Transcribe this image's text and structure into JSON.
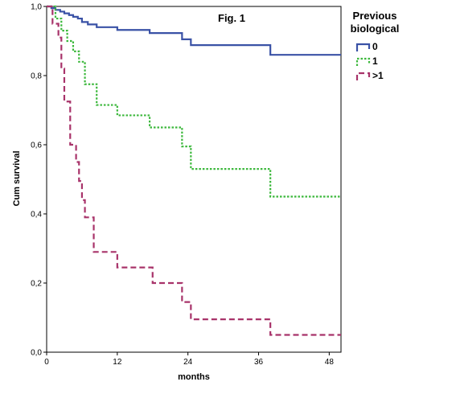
{
  "chart_data": {
    "type": "line",
    "step": true,
    "title": "Fig. 1",
    "xlabel": "months",
    "ylabel": "Cum survival",
    "xlim": [
      0,
      50
    ],
    "ylim": [
      0,
      1.0
    ],
    "xticks": [
      0,
      12,
      24,
      36,
      48
    ],
    "xtick_labels": [
      "0",
      "12",
      "24",
      "36",
      "48"
    ],
    "yticks": [
      0,
      0.2,
      0.4,
      0.6,
      0.8,
      1.0
    ],
    "ytick_labels": [
      "0,0",
      "0,2",
      "0,4",
      "0,6",
      "0,8",
      "1,0"
    ],
    "grid": false,
    "legend": {
      "title_lines": [
        "Previous",
        "biological"
      ],
      "position": "top-right, outside plot"
    },
    "series": [
      {
        "name": "0",
        "color": "#3a52a6",
        "dash": "solid",
        "x": [
          0,
          0.8,
          1.5,
          2.3,
          3.0,
          3.8,
          4.5,
          5.3,
          6.0,
          7.0,
          8.5,
          12.0,
          17.5,
          23.0,
          24.5,
          38.0
        ],
        "y": [
          1.0,
          0.995,
          0.99,
          0.985,
          0.98,
          0.975,
          0.97,
          0.965,
          0.955,
          0.948,
          0.94,
          0.932,
          0.923,
          0.905,
          0.888,
          0.86
        ]
      },
      {
        "name": "1",
        "color": "#3cb83c",
        "dash": "dotted",
        "x": [
          0,
          1.5,
          2.5,
          3.5,
          4.5,
          5.5,
          6.5,
          8.5,
          12.0,
          17.5,
          23.0,
          24.5,
          38.0
        ],
        "y": [
          1.0,
          0.965,
          0.93,
          0.9,
          0.87,
          0.84,
          0.775,
          0.715,
          0.685,
          0.65,
          0.595,
          0.53,
          0.45
        ]
      },
      {
        "name": ">1",
        "color": "#a8336a",
        "dash": "dashed",
        "x": [
          0,
          1.0,
          2.0,
          2.5,
          3.0,
          4.0,
          5.0,
          5.5,
          6.0,
          6.5,
          8.0,
          12.0,
          18.0,
          23.0,
          24.5,
          38.0
        ],
        "y": [
          1.0,
          0.95,
          0.91,
          0.82,
          0.725,
          0.6,
          0.55,
          0.495,
          0.44,
          0.39,
          0.29,
          0.245,
          0.2,
          0.145,
          0.095,
          0.05
        ]
      }
    ]
  }
}
